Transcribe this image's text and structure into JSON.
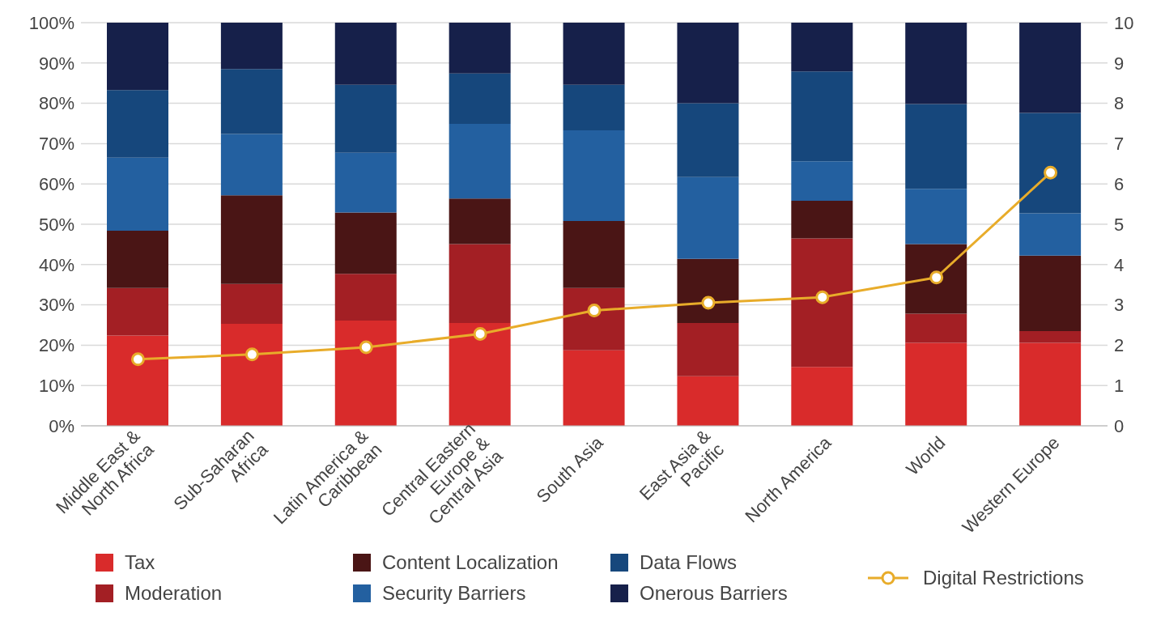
{
  "chart_data": {
    "type": "bar",
    "stacked": true,
    "categories": [
      "Middle East & North Africa",
      "Sub-Saharan Africa",
      "Latin America & Caribbean",
      "Central Eastern Europe & Central Asia",
      "South Asia",
      "East Asia & Pacific",
      "North America",
      "World",
      "Western Europe"
    ],
    "series": [
      {
        "name": "Tax",
        "color": "#d92b2b",
        "values": [
          22.4,
          25.3,
          26.1,
          25.5,
          18.7,
          12.3,
          14.6,
          20.6,
          20.6
        ]
      },
      {
        "name": "Moderation",
        "color": "#a31f24",
        "values": [
          11.8,
          9.9,
          11.6,
          19.6,
          15.5,
          13.2,
          31.9,
          7.2,
          2.9
        ]
      },
      {
        "name": "Content Localization",
        "color": "#4a1515",
        "values": [
          14.2,
          22.0,
          15.2,
          11.3,
          16.6,
          15.9,
          9.3,
          17.3,
          18.7
        ]
      },
      {
        "name": "Security Barriers",
        "color": "#2360a0",
        "values": [
          18.1,
          15.2,
          14.8,
          18.5,
          22.5,
          20.3,
          9.8,
          13.7,
          10.5
        ]
      },
      {
        "name": "Data Flows",
        "color": "#16477c",
        "values": [
          16.8,
          16.1,
          16.9,
          12.5,
          11.3,
          18.3,
          22.3,
          21.0,
          24.9
        ]
      },
      {
        "name": "Onerous Barriers",
        "color": "#16204a",
        "values": [
          16.7,
          11.5,
          15.4,
          12.6,
          15.4,
          20.0,
          12.1,
          20.2,
          22.4
        ]
      },
      {
        "name": "Digital Restrictions",
        "type": "line",
        "axis": "y2",
        "color": "#e8ac2a",
        "marker": "circle",
        "values": [
          1.65,
          1.77,
          1.95,
          2.28,
          2.86,
          3.05,
          3.19,
          3.68,
          6.28
        ]
      }
    ],
    "ylim": [
      0,
      100
    ],
    "yticks": [
      {
        "value": 0,
        "label": "0%"
      },
      {
        "value": 10,
        "label": "10%"
      },
      {
        "value": 20,
        "label": "20%"
      },
      {
        "value": 30,
        "label": "30%"
      },
      {
        "value": 40,
        "label": "40%"
      },
      {
        "value": 50,
        "label": "50%"
      },
      {
        "value": 60,
        "label": "60%"
      },
      {
        "value": 70,
        "label": "70%"
      },
      {
        "value": 80,
        "label": "80%"
      },
      {
        "value": 90,
        "label": "90%"
      },
      {
        "value": 100,
        "label": "100%"
      }
    ],
    "y2lim": [
      0,
      10
    ],
    "y2ticks": [
      0,
      1,
      2,
      3,
      4,
      5,
      6,
      7,
      8,
      9,
      10
    ],
    "grid": "y",
    "legend": "bottom"
  }
}
